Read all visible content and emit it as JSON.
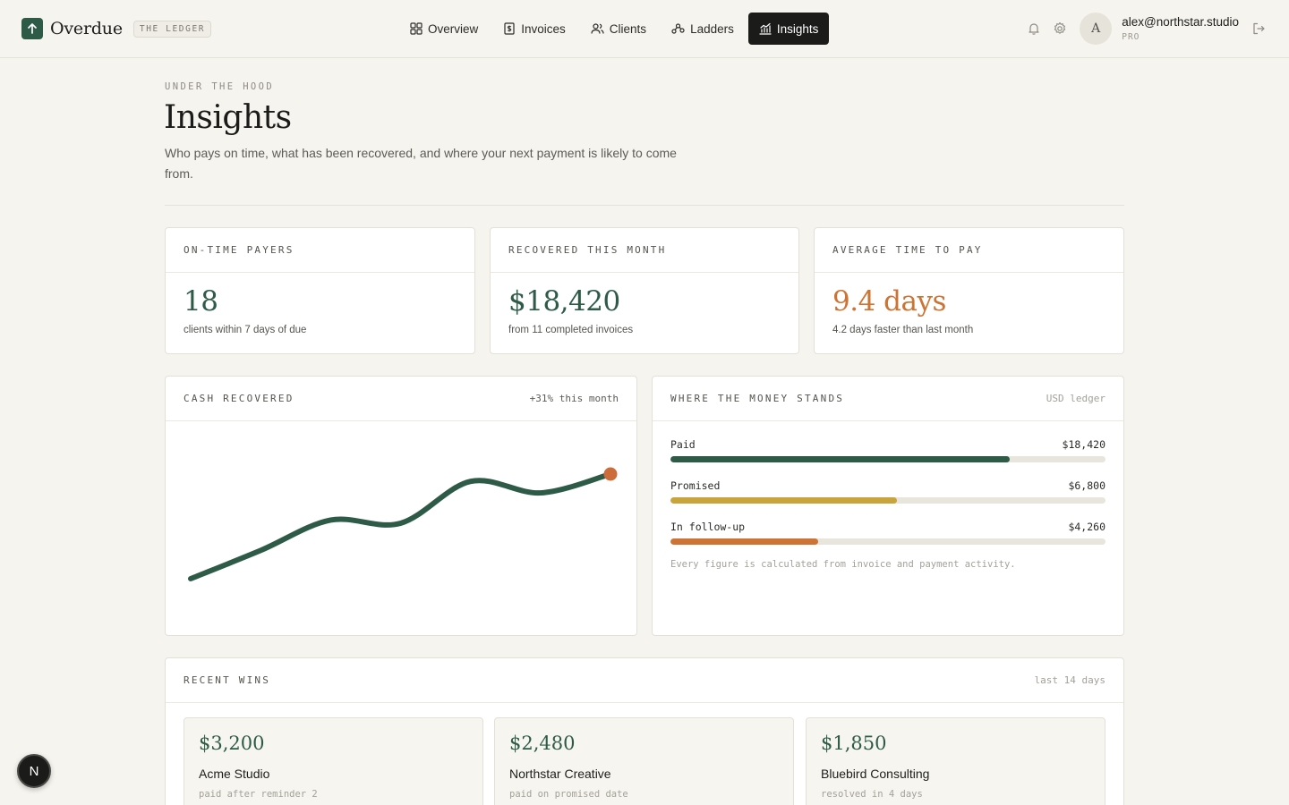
{
  "brand": {
    "name": "Overdue",
    "tag": "THE LEDGER",
    "logo_icon": "arrow-up-icon"
  },
  "nav": [
    {
      "label": "Overview",
      "icon": "grid-icon",
      "active": false
    },
    {
      "label": "Invoices",
      "icon": "invoice-icon",
      "active": false
    },
    {
      "label": "Clients",
      "icon": "users-icon",
      "active": false
    },
    {
      "label": "Ladders",
      "icon": "ladder-icon",
      "active": false
    },
    {
      "label": "Insights",
      "icon": "chart-icon",
      "active": true
    }
  ],
  "user": {
    "avatar_initial": "A",
    "email": "alex@northstar.studio",
    "plan": "PRO"
  },
  "page": {
    "eyebrow": "UNDER THE HOOD",
    "title": "Insights",
    "subtitle": "Who pays on time, what has been recovered, and where your next payment is likely to come from."
  },
  "stats": [
    {
      "label": "ON-TIME PAYERS",
      "value": "18",
      "note": "clients within 7 days of due",
      "color": "#2e5b47"
    },
    {
      "label": "RECOVERED THIS MONTH",
      "value": "$18,420",
      "note": "from 11 completed invoices",
      "color": "#2e5b47"
    },
    {
      "label": "AVERAGE TIME TO PAY",
      "value": "9.4 days",
      "note": "4.2 days faster than last month",
      "color": "#cd7434"
    }
  ],
  "cash_chart": {
    "label": "CASH RECOVERED",
    "meta": "+31% this month",
    "line_color": "#2e5b47",
    "end_dot_color": "#cd6b3a"
  },
  "chart_data": {
    "type": "line",
    "title": "CASH RECOVERED",
    "y_relative": [
      0.0,
      0.27,
      0.56,
      0.53,
      0.93,
      0.82,
      1.0
    ],
    "note": "relative shape only; no axes or values printed"
  },
  "money": {
    "label": "WHERE THE MONEY STANDS",
    "meta": "USD ledger",
    "rows": [
      {
        "label": "Paid",
        "amount": "$18,420",
        "fraction": 0.78,
        "color": "#2e5b47"
      },
      {
        "label": "Promised",
        "amount": "$6,800",
        "fraction": 0.52,
        "color": "#c9a43b"
      },
      {
        "label": "In follow-up",
        "amount": "$4,260",
        "fraction": 0.34,
        "color": "#cd7434"
      }
    ],
    "footnote": "Every figure is calculated from invoice and payment activity."
  },
  "wins": {
    "label": "RECENT WINS",
    "meta": "last 14 days",
    "items": [
      {
        "amount": "$3,200",
        "client": "Acme Studio",
        "note": "paid after reminder 2"
      },
      {
        "amount": "$2,480",
        "client": "Northstar Creative",
        "note": "paid on promised date"
      },
      {
        "amount": "$1,850",
        "client": "Bluebird Consulting",
        "note": "resolved in 4 days"
      }
    ]
  },
  "floating_badge": {
    "letter": "N"
  }
}
